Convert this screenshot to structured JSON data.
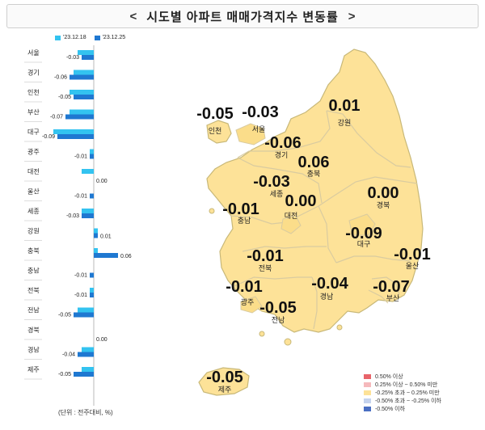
{
  "title": "시도별 아파트 매매가격지수 변동률",
  "nav": {
    "prev": "<",
    "next": ">"
  },
  "unit_note": "(단위 : 전주대비, %)",
  "colors": {
    "prev_series": "#33c3f0",
    "curr_series": "#1f78d1",
    "map_fill": "#fde298",
    "map_stroke": "#c8b878",
    "map_border": "#d9cba0"
  },
  "chart_data": {
    "type": "bar",
    "orientation": "horizontal",
    "categories": [
      "서울",
      "경기",
      "인천",
      "부산",
      "대구",
      "광주",
      "대전",
      "울산",
      "세종",
      "강원",
      "충북",
      "충남",
      "전북",
      "전남",
      "경북",
      "경남",
      "제주"
    ],
    "series": [
      {
        "name": "'23.12.18",
        "values": [
          -0.04,
          -0.05,
          -0.06,
          -0.06,
          -0.1,
          -0.01,
          -0.03,
          0.0,
          -0.03,
          0.01,
          0.01,
          0.0,
          -0.01,
          -0.04,
          0.0,
          -0.03,
          -0.03
        ]
      },
      {
        "name": "'23.12.25",
        "values": [
          -0.03,
          -0.06,
          -0.05,
          -0.07,
          -0.09,
          -0.01,
          0.0,
          -0.01,
          -0.03,
          0.01,
          0.06,
          -0.01,
          -0.01,
          -0.05,
          0.0,
          -0.04,
          -0.05
        ]
      }
    ],
    "value_labels": [
      "-0.03",
      "-0.06",
      "-0.05",
      "-0.07",
      "-0.09",
      "-0.01",
      "0.00",
      "-0.01",
      "-0.03",
      "0.01",
      "0.06",
      "-0.01",
      "-0.01",
      "-0.05",
      "0.00",
      "-0.04",
      "-0.05"
    ],
    "xlim": [
      -0.12,
      0.08
    ]
  },
  "map": {
    "regions": [
      {
        "id": "incheon",
        "name": "인천",
        "value": "-0.05"
      },
      {
        "id": "seoul",
        "name": "서울",
        "value": "-0.03"
      },
      {
        "id": "gangwon",
        "name": "강원",
        "value": "0.01"
      },
      {
        "id": "gyeonggi",
        "name": "경기",
        "value": "-0.06"
      },
      {
        "id": "chungbuk",
        "name": "충북",
        "value": "0.06"
      },
      {
        "id": "sejong",
        "name": "세종",
        "value": "-0.03"
      },
      {
        "id": "daejeon",
        "name": "대전",
        "value": "0.00"
      },
      {
        "id": "chungnam",
        "name": "충남",
        "value": "-0.01"
      },
      {
        "id": "gyeongbuk",
        "name": "경북",
        "value": "0.00"
      },
      {
        "id": "daegu",
        "name": "대구",
        "value": "-0.09"
      },
      {
        "id": "ulsan",
        "name": "울산",
        "value": "-0.01"
      },
      {
        "id": "jeonbuk",
        "name": "전북",
        "value": "-0.01"
      },
      {
        "id": "gwangju",
        "name": "광주",
        "value": "-0.01"
      },
      {
        "id": "gyeongnam",
        "name": "경남",
        "value": "-0.04"
      },
      {
        "id": "busan",
        "name": "부산",
        "value": "-0.07"
      },
      {
        "id": "jeonnam",
        "name": "전남",
        "value": "-0.05"
      },
      {
        "id": "jeju",
        "name": "제주",
        "value": "-0.05"
      }
    ],
    "legend": [
      {
        "label": "0.50% 이상",
        "color": "#e8646a"
      },
      {
        "label": "0.25% 이상 ~ 0.50% 미만",
        "color": "#f5b9bc"
      },
      {
        "label": "-0.25% 초과 ~ 0.25% 미만",
        "color": "#fde298"
      },
      {
        "label": "-0.50% 초과 ~ -0.25% 이하",
        "color": "#c5d3ee"
      },
      {
        "label": "-0.50% 이하",
        "color": "#4a6fc3"
      }
    ]
  }
}
